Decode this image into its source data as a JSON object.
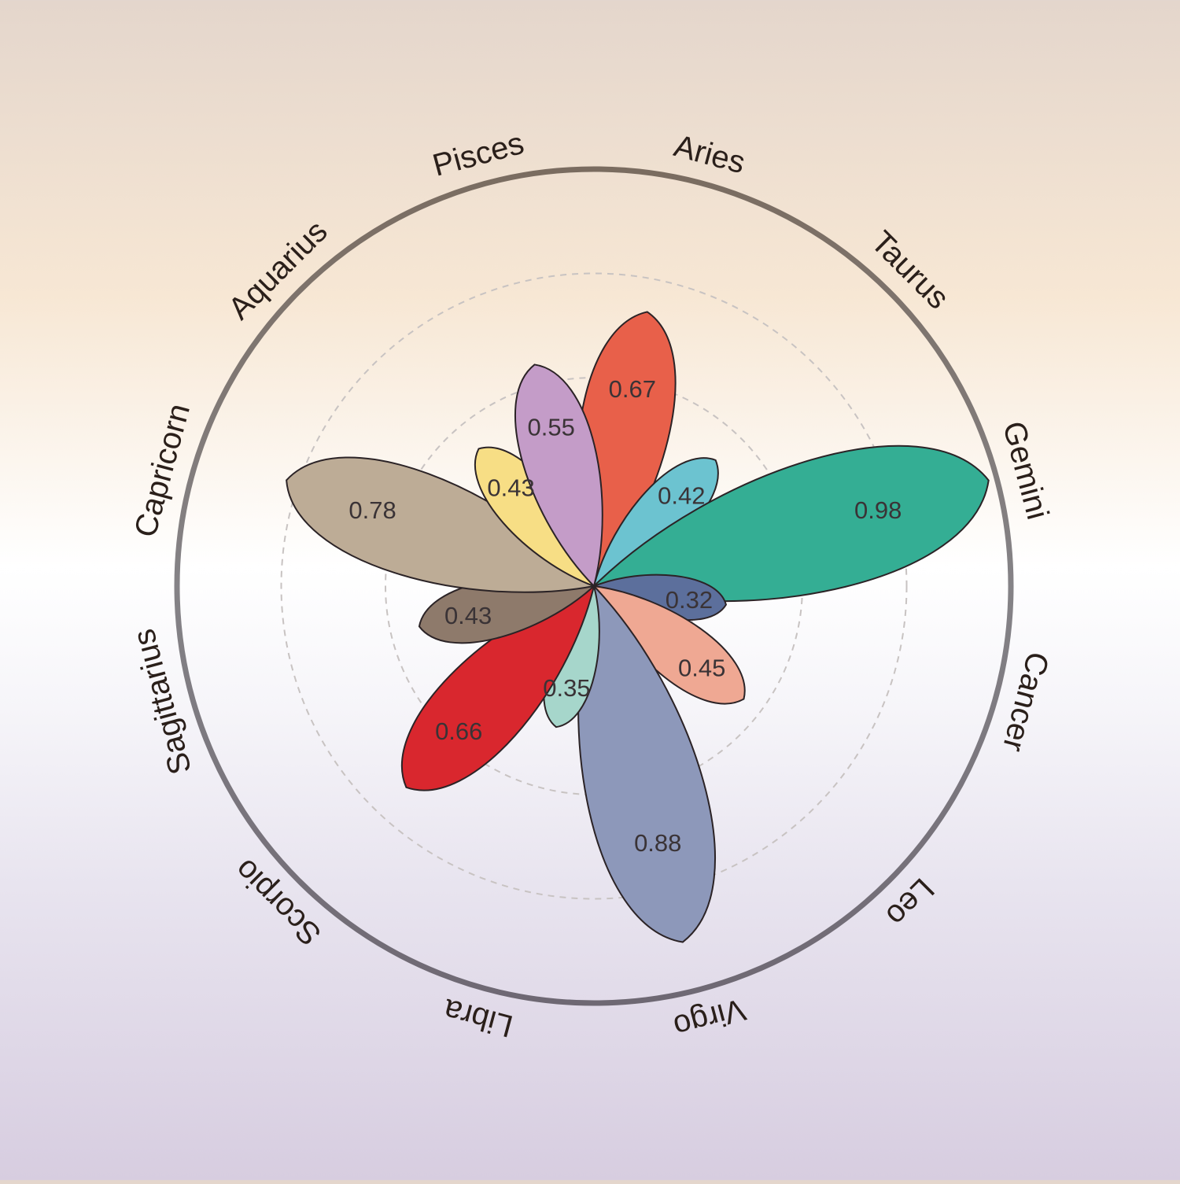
{
  "chart_data": {
    "type": "polar-petal",
    "title": "",
    "angular_axis_labels": [
      "Aries",
      "Taurus",
      "Gemini",
      "Cancer",
      "Leo",
      "Virgo",
      "Libra",
      "Scorpio",
      "Sagittarius",
      "Capricorn",
      "Aquarius",
      "Pisces"
    ],
    "radial_range": [
      0,
      1
    ],
    "grid_rings": [
      0.25,
      0.5,
      0.75
    ],
    "series": [
      {
        "angle": 11,
        "value": 0.67,
        "label": "0.67",
        "color": "#e8604a"
      },
      {
        "angle": 44,
        "value": 0.42,
        "label": "0.42",
        "color": "#6cc3d0"
      },
      {
        "angle": 75,
        "value": 0.98,
        "label": "0.98",
        "color": "#34ae94"
      },
      {
        "angle": 98,
        "value": 0.32,
        "label": "0.32",
        "color": "#5c6f9c"
      },
      {
        "angle": 127,
        "value": 0.45,
        "label": "0.45",
        "color": "#efa893"
      },
      {
        "angle": 166,
        "value": 0.88,
        "label": "0.88",
        "color": "#8d98ba"
      },
      {
        "angle": 195,
        "value": 0.35,
        "label": "0.35",
        "color": "#a6d6cb"
      },
      {
        "angle": 223,
        "value": 0.66,
        "label": "0.66",
        "color": "#d9272e"
      },
      {
        "angle": 257,
        "value": 0.43,
        "label": "0.43",
        "color": "#8e7a6b"
      },
      {
        "angle": 289,
        "value": 0.78,
        "label": "0.78",
        "color": "#bdac96"
      },
      {
        "angle": 320,
        "value": 0.43,
        "label": "0.43",
        "color": "#f7de85"
      },
      {
        "angle": 345,
        "value": 0.55,
        "label": "0.55",
        "color": "#c49cc8"
      }
    ]
  }
}
